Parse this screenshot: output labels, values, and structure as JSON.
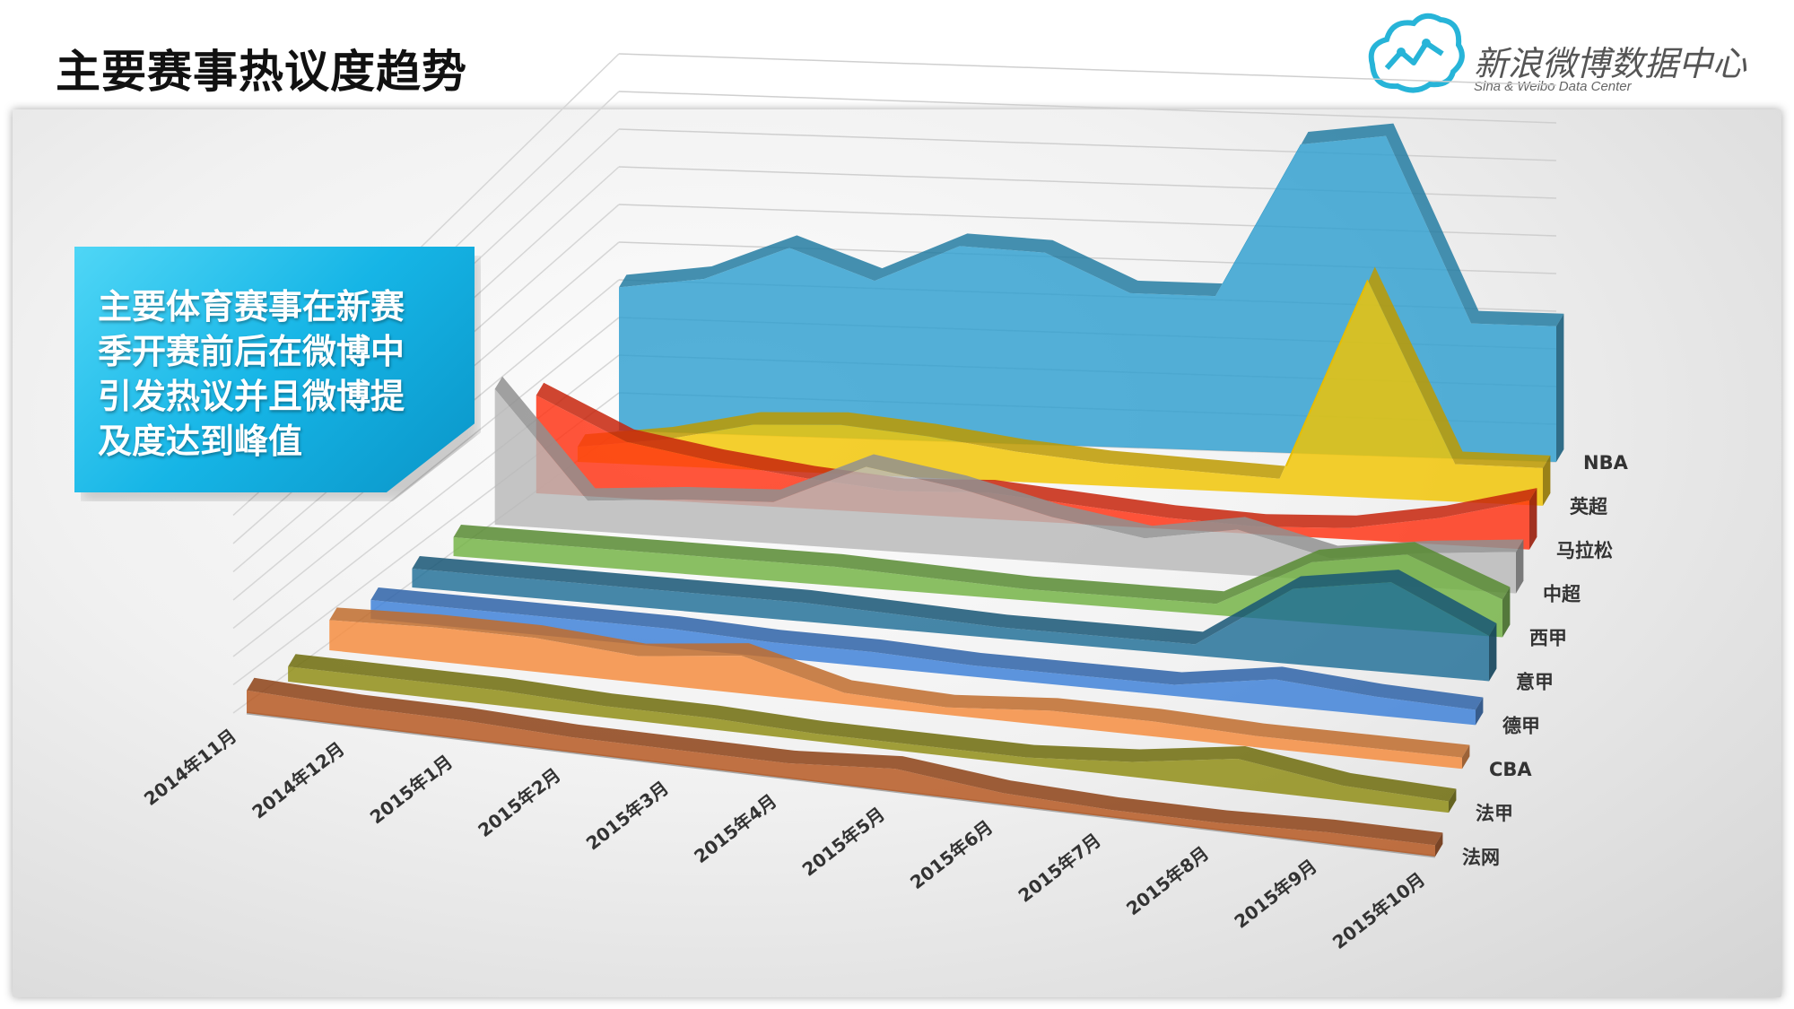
{
  "title": "主要赛事热议度趋势",
  "logo": {
    "name_cn": "新浪微博数据中心",
    "name_en": "Sina & Weibo Data Center"
  },
  "callout": {
    "lines": [
      "主要体育赛事在新赛",
      "季开赛前后在微博中",
      "引发热议并且微博提",
      "及度达到峰值"
    ]
  },
  "colors": {
    "NBA": "#2e9fd0",
    "英超": "#f2c500",
    "马拉松": "#ff3010",
    "中超": "#b8b8b8",
    "西甲": "#71b242",
    "意甲": "#1e6e96",
    "德甲": "#3b7fd8",
    "CBA": "#f58a3a",
    "法甲": "#8e8b10",
    "法网": "#b5541c"
  },
  "chart_data": {
    "type": "area",
    "x": [
      "2014年11月",
      "2014年12月",
      "2015年1月",
      "2015年2月",
      "2015年3月",
      "2015年4月",
      "2015年5月",
      "2015年6月",
      "2015年7月",
      "2015年8月",
      "2015年9月",
      "2015年10月"
    ],
    "series": [
      {
        "name": "NBA",
        "values": [
          38,
          41,
          50,
          42,
          52,
          51,
          41,
          41,
          82,
          85,
          36,
          36
        ]
      },
      {
        "name": "英超",
        "values": [
          4,
          7,
          12,
          13,
          11,
          8,
          6,
          5,
          4,
          58,
          10,
          10
        ]
      },
      {
        "name": "马拉松",
        "values": [
          26,
          15,
          11,
          8,
          6,
          7,
          5,
          3,
          2,
          3,
          7,
          13
        ]
      },
      {
        "name": "中超",
        "values": [
          36,
          8,
          10,
          11,
          22,
          18,
          12,
          8,
          12,
          6,
          9,
          11
        ]
      },
      {
        "name": "西甲",
        "values": [
          5,
          5,
          5,
          5,
          5,
          4,
          3,
          3,
          3,
          16,
          20,
          10
        ]
      },
      {
        "name": "意甲",
        "values": [
          5,
          5,
          5,
          5,
          5,
          4,
          3,
          3,
          3,
          20,
          24,
          12
        ]
      },
      {
        "name": "德甲",
        "values": [
          5,
          5,
          5,
          5,
          4,
          4,
          3,
          3,
          3,
          7,
          5,
          4
        ]
      },
      {
        "name": "CBA",
        "values": [
          8,
          9,
          9,
          7,
          10,
          3,
          2,
          4,
          4,
          3,
          3,
          3
        ]
      },
      {
        "name": "法甲",
        "values": [
          4,
          4,
          4,
          3,
          3,
          2,
          2,
          2,
          4,
          8,
          4,
          3
        ]
      },
      {
        "name": "法网",
        "values": [
          6,
          5,
          5,
          4,
          4,
          4,
          6,
          3,
          2,
          2,
          3,
          3
        ]
      }
    ],
    "title": "",
    "xlabel": "",
    "ylabel": "",
    "ylim": [
      0,
      100
    ],
    "grid": true,
    "legend": "none"
  }
}
